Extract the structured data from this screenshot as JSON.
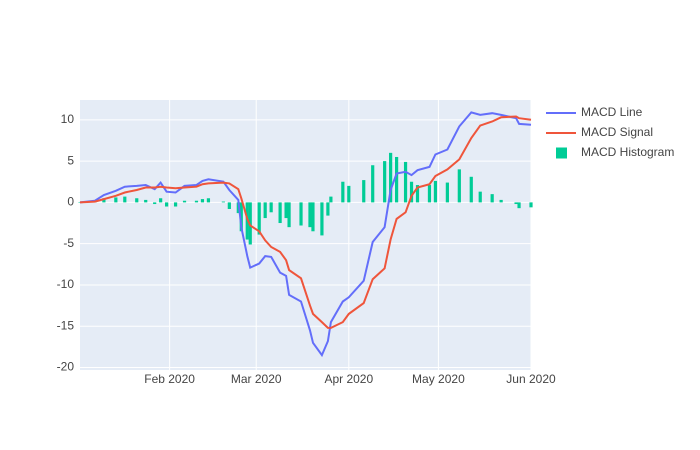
{
  "chart_data": {
    "type": "line",
    "x": [
      "2020-01-02",
      "2020-01-07",
      "2020-01-10",
      "2020-01-14",
      "2020-01-17",
      "2020-01-21",
      "2020-01-24",
      "2020-01-27",
      "2020-01-29",
      "2020-01-31",
      "2020-02-03",
      "2020-02-06",
      "2020-02-10",
      "2020-02-12",
      "2020-02-14",
      "2020-02-19",
      "2020-02-21",
      "2020-02-24",
      "2020-02-25",
      "2020-02-27",
      "2020-02-28",
      "2020-03-02",
      "2020-03-04",
      "2020-03-06",
      "2020-03-09",
      "2020-03-11",
      "2020-03-12",
      "2020-03-16",
      "2020-03-19",
      "2020-03-20",
      "2020-03-23",
      "2020-03-25",
      "2020-03-26",
      "2020-03-30",
      "2020-04-01",
      "2020-04-06",
      "2020-04-09",
      "2020-04-13",
      "2020-04-15",
      "2020-04-17",
      "2020-04-20",
      "2020-04-22",
      "2020-04-24",
      "2020-04-28",
      "2020-04-30",
      "2020-05-04",
      "2020-05-08",
      "2020-05-12",
      "2020-05-15",
      "2020-05-19",
      "2020-05-22",
      "2020-05-27",
      "2020-05-28",
      "2020-06-01"
    ],
    "series": [
      {
        "name": "MACD Line",
        "type": "line",
        "color": "#636efa",
        "values": [
          0,
          0.2,
          0.9,
          1.4,
          1.9,
          2.0,
          2.1,
          1.6,
          2.4,
          1.3,
          1.2,
          2.0,
          2.1,
          2.6,
          2.8,
          2.5,
          1.5,
          0.3,
          -3.0,
          -6.5,
          -7.9,
          -7.4,
          -6.5,
          -6.6,
          -8.5,
          -8.9,
          -11.2,
          -12.0,
          -15.5,
          -17.0,
          -18.5,
          -16.8,
          -14.5,
          -12.0,
          -11.5,
          -9.5,
          -4.8,
          -3.0,
          1.5,
          3.5,
          3.7,
          3.3,
          3.9,
          4.3,
          5.8,
          6.4,
          9.2,
          10.9,
          10.6,
          10.8,
          10.6,
          10.2,
          9.5,
          9.4
        ]
      },
      {
        "name": "MACD Signal",
        "type": "line",
        "color": "#EF553B",
        "values": [
          0,
          0.1,
          0.4,
          0.8,
          1.2,
          1.5,
          1.8,
          1.8,
          1.9,
          1.8,
          1.7,
          1.8,
          1.9,
          2.2,
          2.3,
          2.4,
          2.3,
          1.6,
          0.5,
          -2.0,
          -2.8,
          -3.5,
          -4.6,
          -5.4,
          -6.0,
          -7.0,
          -8.2,
          -9.2,
          -12.5,
          -13.5,
          -14.5,
          -15.2,
          -15.2,
          -14.5,
          -13.5,
          -12.2,
          -9.3,
          -8.0,
          -4.5,
          -2.0,
          -1.2,
          0.8,
          1.8,
          2.2,
          3.2,
          4.0,
          5.2,
          7.8,
          9.3,
          9.8,
          10.3,
          10.4,
          10.2,
          10.0
        ]
      },
      {
        "name": "MACD Histogram",
        "type": "bar",
        "color": "#00cc96",
        "values": [
          0,
          0.1,
          0.5,
          0.6,
          0.7,
          0.5,
          0.3,
          -0.2,
          0.5,
          -0.5,
          -0.5,
          0.2,
          0.2,
          0.4,
          0.5,
          0.1,
          -0.8,
          -1.3,
          -3.5,
          -4.5,
          -5.1,
          -3.9,
          -1.9,
          -1.2,
          -2.5,
          -1.9,
          -3.0,
          -2.8,
          -3.0,
          -3.5,
          -4.0,
          -1.6,
          0.7,
          2.5,
          2.0,
          2.7,
          4.5,
          5.0,
          6.0,
          5.5,
          4.9,
          2.5,
          2.1,
          2.1,
          2.6,
          2.4,
          4.0,
          3.1,
          1.3,
          1.0,
          0.3,
          -0.2,
          -0.7,
          -0.6
        ]
      }
    ],
    "xlim": [
      "2020-01-02",
      "2020-06-01"
    ],
    "xticks": [
      {
        "value": "2020-02-01",
        "label": "Feb 2020"
      },
      {
        "value": "2020-03-01",
        "label": "Mar 2020"
      },
      {
        "value": "2020-04-01",
        "label": "Apr 2020"
      },
      {
        "value": "2020-05-01",
        "label": "May 2020"
      },
      {
        "value": "2020-06-01",
        "label": "Jun 2020"
      }
    ],
    "ylim": [
      -20.3,
      12.4
    ],
    "yticks": [
      -20,
      -15,
      -10,
      -5,
      0,
      5,
      10
    ],
    "grid": true
  }
}
